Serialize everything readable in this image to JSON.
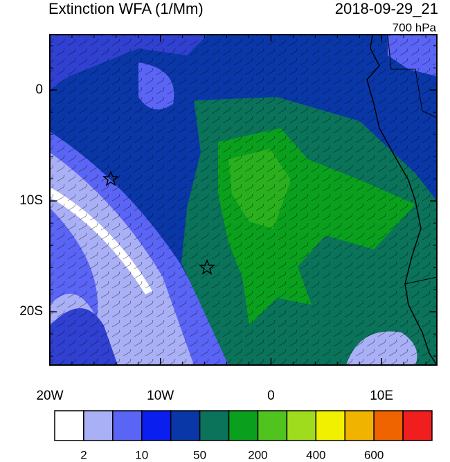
{
  "map": {
    "title": "Extinction WFA (1/Mm)",
    "date": "2018-09-29_21",
    "level": "700 hPa",
    "lonlim": [
      -20,
      15
    ],
    "latlim": [
      5,
      -24.8
    ],
    "lonticks": [
      {
        "value": -20,
        "label": "20W"
      },
      {
        "value": -10,
        "label": "10W"
      },
      0,
      {
        "value": 10,
        "label": "10E"
      }
    ],
    "latticks": [
      0,
      {
        "value": -10,
        "label": "10S"
      },
      {
        "value": -20,
        "label": "20S"
      }
    ]
  },
  "colorbar": {
    "colors": [
      "#ffffff",
      "#aab0f5",
      "#5a64f5",
      "#0a1ef0",
      "#0a37a8",
      "#0a735a",
      "#0aa01e",
      "#50c31e",
      "#a0dc1e",
      "#f0f000",
      "#f0b400",
      "#f06400",
      "#f01e1e"
    ],
    "labels": [
      2,
      10,
      50,
      200,
      400,
      600
    ]
  }
}
